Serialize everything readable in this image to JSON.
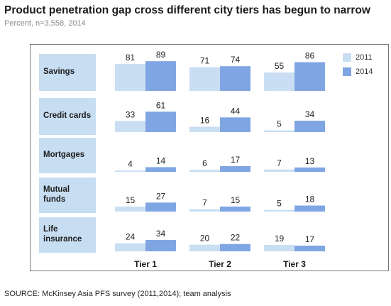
{
  "title": "Product penetration gap cross different city tiers has begun to narrow",
  "subtitle": "Percent, n=3,558, 2014",
  "source": "SOURCE: McKinsey Asia PFS survey (2011,2014); team analysis",
  "colors": {
    "y2011": "#c9def2",
    "y2014": "#7fa6e3",
    "label_bg": "#c7ddf2"
  },
  "chart_data": {
    "type": "bar",
    "categories": [
      "Tier 1",
      "Tier 2",
      "Tier 3"
    ],
    "rows": [
      "Savings",
      "Credit cards",
      "Mortgages",
      "Mutual\nfunds",
      "Life\ninsurance"
    ],
    "series": [
      {
        "name": "2011",
        "values": [
          [
            81,
            71,
            55
          ],
          [
            33,
            16,
            5
          ],
          [
            4,
            6,
            7
          ],
          [
            15,
            7,
            5
          ],
          [
            24,
            20,
            19
          ]
        ]
      },
      {
        "name": "2014",
        "values": [
          [
            89,
            74,
            86
          ],
          [
            61,
            44,
            34
          ],
          [
            14,
            17,
            13
          ],
          [
            27,
            15,
            18
          ],
          [
            34,
            22,
            17
          ]
        ]
      }
    ],
    "legend_position": "top-right"
  }
}
